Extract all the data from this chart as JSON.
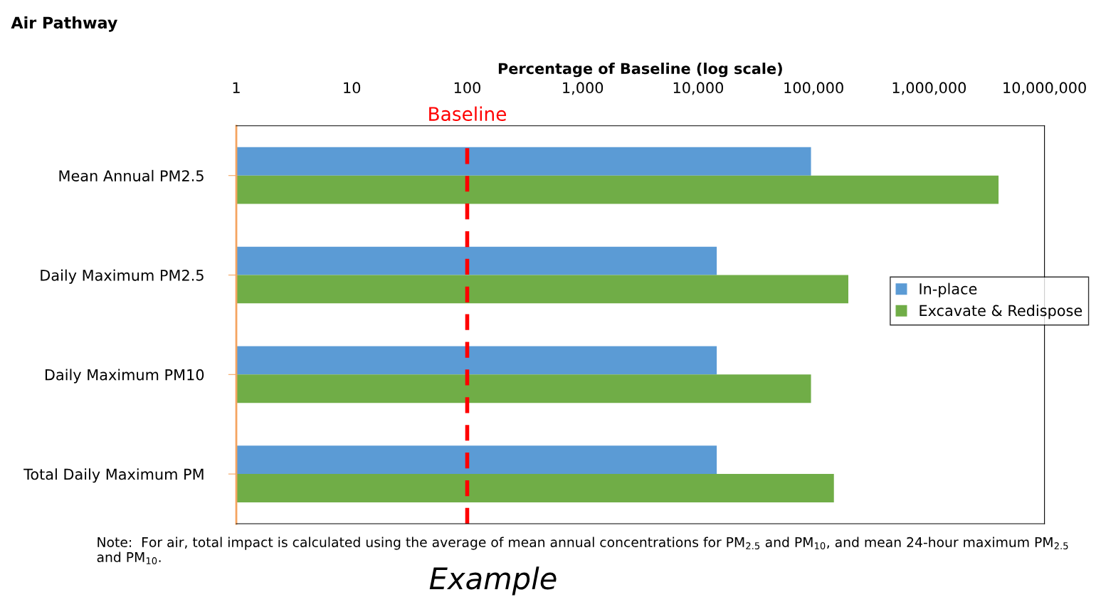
{
  "chart_data": {
    "type": "bar",
    "orientation": "horizontal",
    "title": "Air Pathway",
    "xlabel": "Percentage of Baseline (log scale)",
    "categories": [
      "Mean Annual PM2.5",
      "Daily Maximum PM2.5",
      "Daily Maximum PM10",
      "Total Daily Maximum PM"
    ],
    "series": [
      {
        "name": "In-place",
        "color": "#5b9bd5",
        "values": [
          95000,
          14500,
          14500,
          14500
        ]
      },
      {
        "name": "Excavate & Redispose",
        "color": "#70ad47",
        "values": [
          4000000,
          200000,
          95000,
          150000
        ]
      }
    ],
    "log": "x",
    "xlim": [
      1,
      10000000
    ],
    "xticks": [
      1,
      10,
      100,
      {
        "value": 1000,
        "label": "1,000"
      },
      {
        "value": 10000,
        "label": "10,000"
      },
      {
        "value": 100000,
        "label": "100,000"
      },
      {
        "value": 1000000,
        "label": "1,000,000"
      },
      {
        "value": 10000000,
        "label": "10,000,000"
      }
    ],
    "grid": false,
    "legend": "right",
    "ref_lines": [
      {
        "axis": "x",
        "value": 100,
        "label": "Baseline",
        "color": "#ff0000",
        "line_style": "dashed"
      }
    ],
    "annotations": [
      "Note:  For air, total impact is calculated using the average of mean annual concentrations for PM$_{2.5}$ and PM$_{10}$, and mean 24-hour maximum PM$_{2.5}$ and PM$_{10}$.",
      "Example"
    ]
  }
}
